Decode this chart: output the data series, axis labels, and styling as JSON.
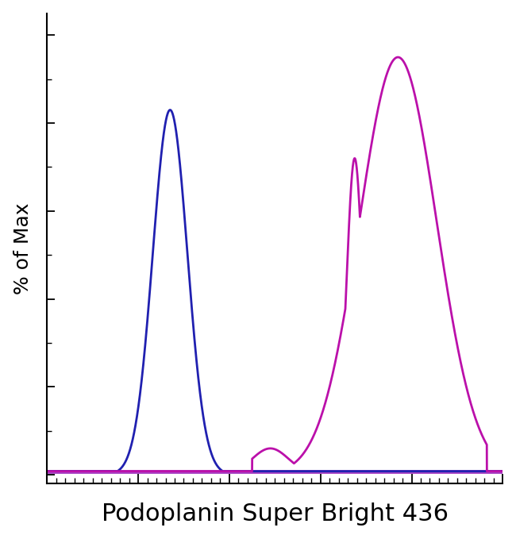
{
  "title": "Podoplanin Super Bright 436",
  "ylabel": "% of Max",
  "background_color": "#ffffff",
  "blue_color": "#2020b0",
  "magenta_color": "#bb10aa",
  "axis_color": "#000000",
  "baseline_color": "#9922bb",
  "xlim": [
    0.0,
    1.0
  ],
  "ylim": [
    -0.02,
    1.05
  ],
  "ylabel_fontsize": 18,
  "xlabel_fontsize": 22,
  "linewidth": 2.0,
  "baseline_linewidth": 3.5,
  "tick_direction": "in"
}
